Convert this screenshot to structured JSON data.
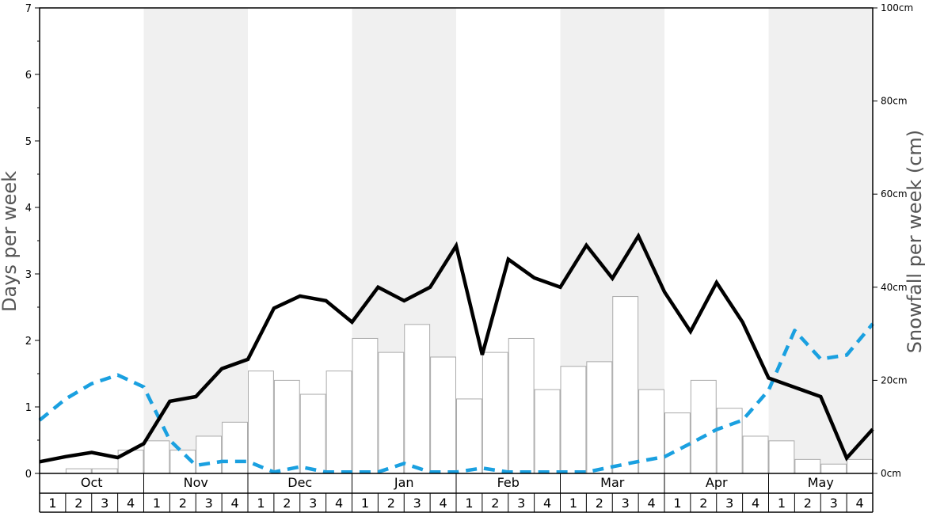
{
  "chart_data": {
    "type": "bar",
    "months": [
      "Oct",
      "Nov",
      "Dec",
      "Jan",
      "Feb",
      "Mar",
      "Apr",
      "May"
    ],
    "week_labels": [
      "1",
      "2",
      "3",
      "4"
    ],
    "ylabel": "Days per week",
    "y2label": "Snowfall per week (cm)",
    "ylim": [
      0,
      7
    ],
    "y2lim": [
      0,
      100
    ],
    "y_ticks": [
      0,
      1,
      2,
      3,
      4,
      5,
      6,
      7
    ],
    "y2_ticks": [
      "0cm",
      "20cm",
      "40cm",
      "60cm",
      "80cm",
      "100cm"
    ],
    "y2_tick_values": [
      0,
      20,
      40,
      60,
      80,
      100
    ],
    "grid": false,
    "shaded_months": [
      "Nov",
      "Jan",
      "Mar",
      "May"
    ],
    "series": [
      {
        "kind": "bar",
        "axis": "left",
        "color": "#ffffff",
        "stroke": "#aaaaaa",
        "values": [
          0.0,
          0.07,
          0.07,
          0.35,
          0.49,
          0.35,
          0.56,
          0.77,
          1.54,
          1.4,
          1.19,
          1.54,
          2.03,
          1.82,
          2.24,
          1.75,
          1.12,
          1.82,
          2.03,
          1.26,
          1.61,
          1.68,
          2.66,
          1.26,
          0.91,
          1.4,
          0.98,
          0.56,
          0.49,
          0.21,
          0.14,
          0.21
        ]
      },
      {
        "kind": "line",
        "axis": "right",
        "color": "#000000",
        "style": "solid",
        "values": [
          2.5,
          3.6,
          4.5,
          3.4,
          6.4,
          15.5,
          16.5,
          22.5,
          24.5,
          35.5,
          38.1,
          37.1,
          32.5,
          40.0,
          37.1,
          40.0,
          48.9,
          25.5,
          46.0,
          42.0,
          40.0,
          49.0,
          41.9,
          51.0,
          39.0,
          30.5,
          41.0,
          32.5,
          20.5,
          18.5,
          16.5,
          3.3,
          9.5
        ]
      },
      {
        "kind": "line",
        "axis": "left",
        "color": "#1aa0e0",
        "style": "dashed",
        "values": [
          0.8,
          1.12,
          1.35,
          1.48,
          1.3,
          0.5,
          0.12,
          0.18,
          0.18,
          0.02,
          0.1,
          0.02,
          0.02,
          0.02,
          0.15,
          0.02,
          0.02,
          0.08,
          0.02,
          0.02,
          0.02,
          0.02,
          0.1,
          0.18,
          0.25,
          0.45,
          0.66,
          0.8,
          1.25,
          2.15,
          1.72,
          1.78,
          2.25
        ]
      }
    ]
  }
}
